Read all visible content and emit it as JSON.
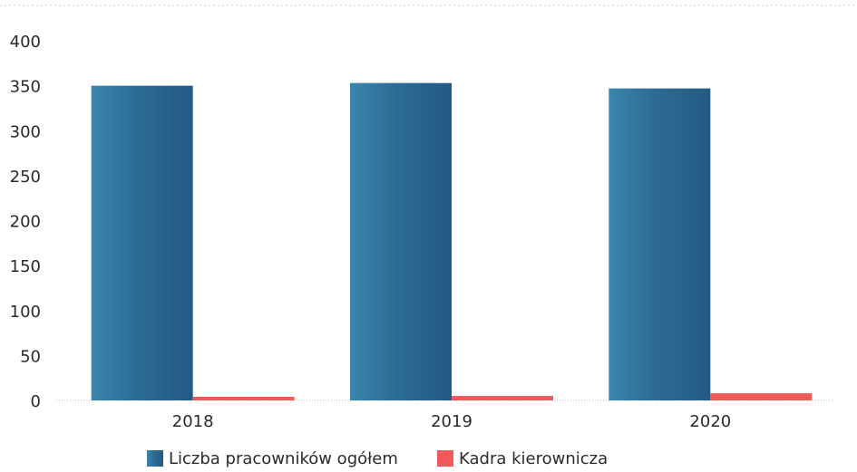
{
  "chart_data": {
    "type": "bar",
    "categories": [
      "2018",
      "2019",
      "2020"
    ],
    "series": [
      {
        "name": "Liczba pracowników ogółem",
        "values": [
          350,
          353,
          347
        ],
        "color": "#2f6f98"
      },
      {
        "name": "Kadra kierownicza",
        "values": [
          4,
          5,
          8
        ],
        "color": "#f05a5a"
      }
    ],
    "ylim": [
      0,
      400
    ],
    "yticks": [
      0,
      50,
      100,
      150,
      200,
      250,
      300,
      350,
      400
    ],
    "grid": false,
    "legend_position": "bottom-center"
  }
}
